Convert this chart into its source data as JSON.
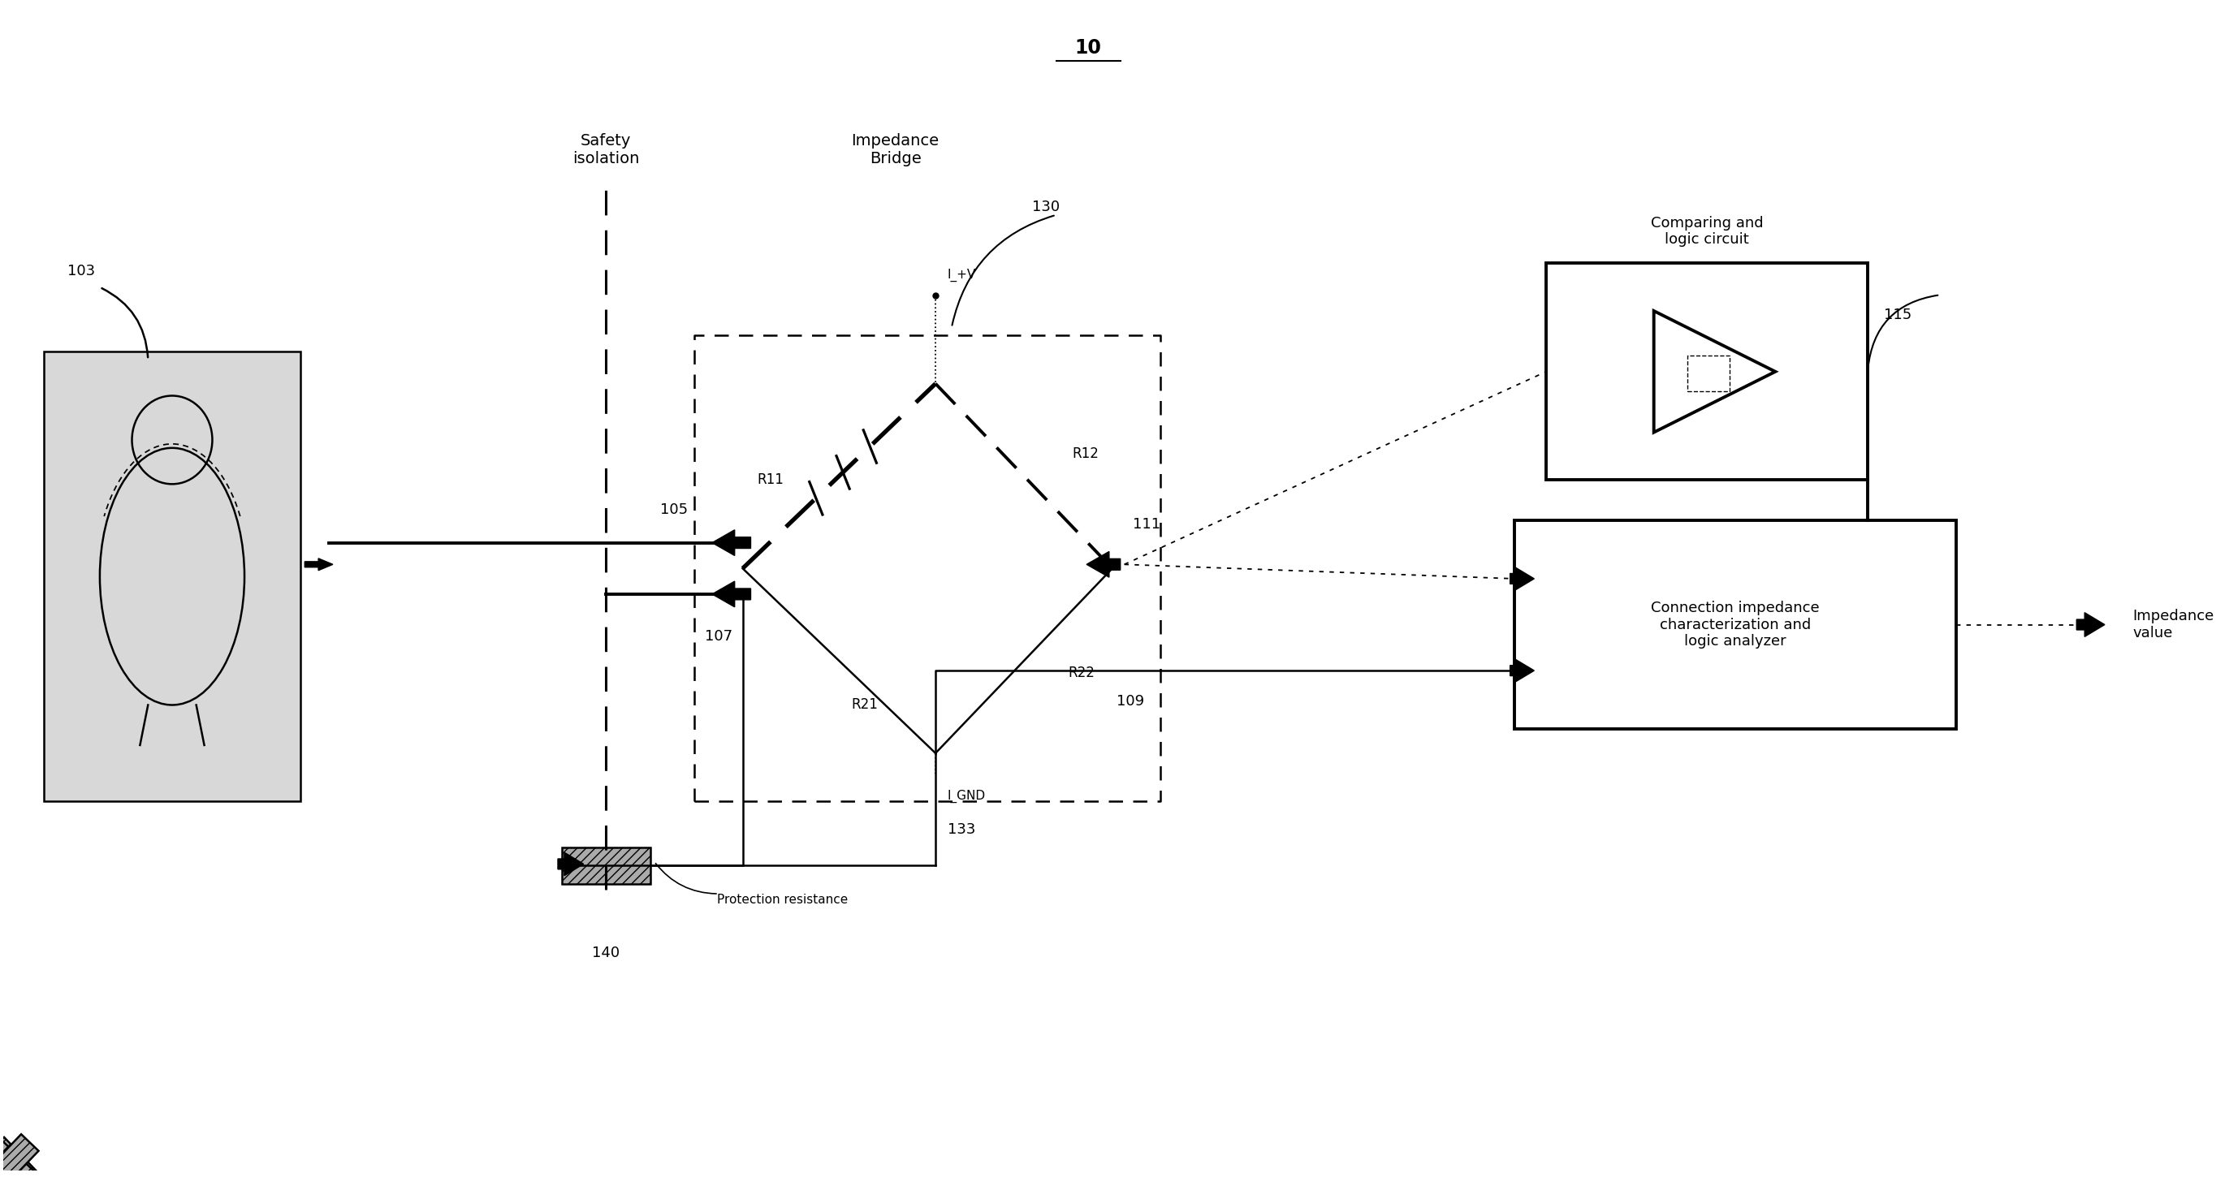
{
  "title": "10",
  "bg_color": "#ffffff",
  "fig_width": 27.45,
  "fig_height": 14.5,
  "labels": {
    "safety_isolation": "Safety\nisolation",
    "impedance_bridge": "Impedance\nBridge",
    "n130": "130",
    "comparing_logic": "Comparing and\nlogic circuit",
    "connection_impedance": "Connection impedance\ncharacterization and\nlogic analyzer",
    "impedance_value": "Impedance\nvalue",
    "I_plus_V": "I_+V",
    "I_GND": "I_GND",
    "protection_resistance": "Protection resistance",
    "n103": "103",
    "n105": "105",
    "n107": "107",
    "n109": "109",
    "n111": "111",
    "n115": "115",
    "n133": "133",
    "n140": "140",
    "R11": "R11",
    "R12": "R12",
    "R21": "R21",
    "R22": "R22"
  }
}
